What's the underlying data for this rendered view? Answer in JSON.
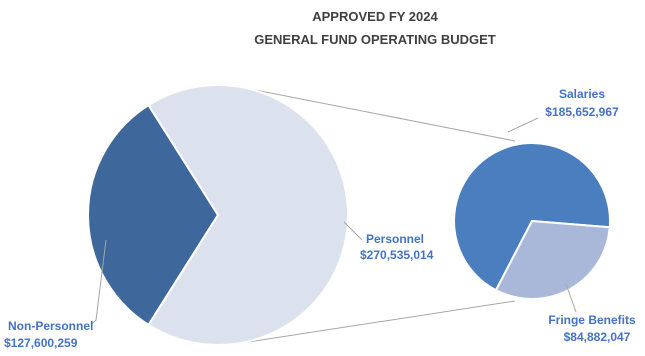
{
  "colors": {
    "personnel": "#DCE1EE",
    "non_personnel": "#3E679C",
    "salaries": "#4A7EBE",
    "fringe": "#A9B8D9",
    "connector": "#A6A6A6",
    "label": "#4472C4",
    "title": "#404040"
  },
  "chart_data": {
    "type": "pie",
    "subtype": "pie-of-pie",
    "title": "APPROVED FY 2024",
    "subtitle": "GENERAL FUND OPERATING BUDGET",
    "main_pie": [
      {
        "name": "Personnel",
        "value": 270535014,
        "value_label": "$270,535,014"
      },
      {
        "name": "Non-Personnel",
        "value": 127600259,
        "value_label": "$127,600,259"
      }
    ],
    "secondary_pie": [
      {
        "name": "Salaries",
        "value": 185652967,
        "value_label": "$185,652,967"
      },
      {
        "name": "Fringe Benefits",
        "value": 84882047,
        "value_label": "$84,882,047"
      }
    ],
    "exploded_from": "Personnel"
  }
}
